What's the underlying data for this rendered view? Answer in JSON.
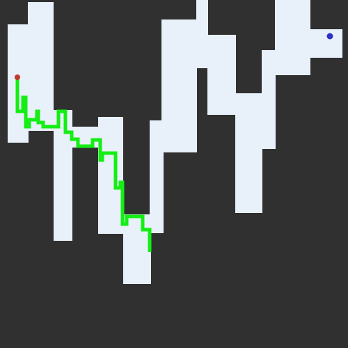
{
  "colors": {
    "wall": "#303030",
    "floor": "#E8F0FA",
    "path": "#14EE14",
    "start_marker": "#C0392B",
    "goal_marker": "#2C33C4"
  },
  "markers": {
    "start_icon": "start-dot-icon",
    "goal_icon": "goal-dot-icon"
  }
}
